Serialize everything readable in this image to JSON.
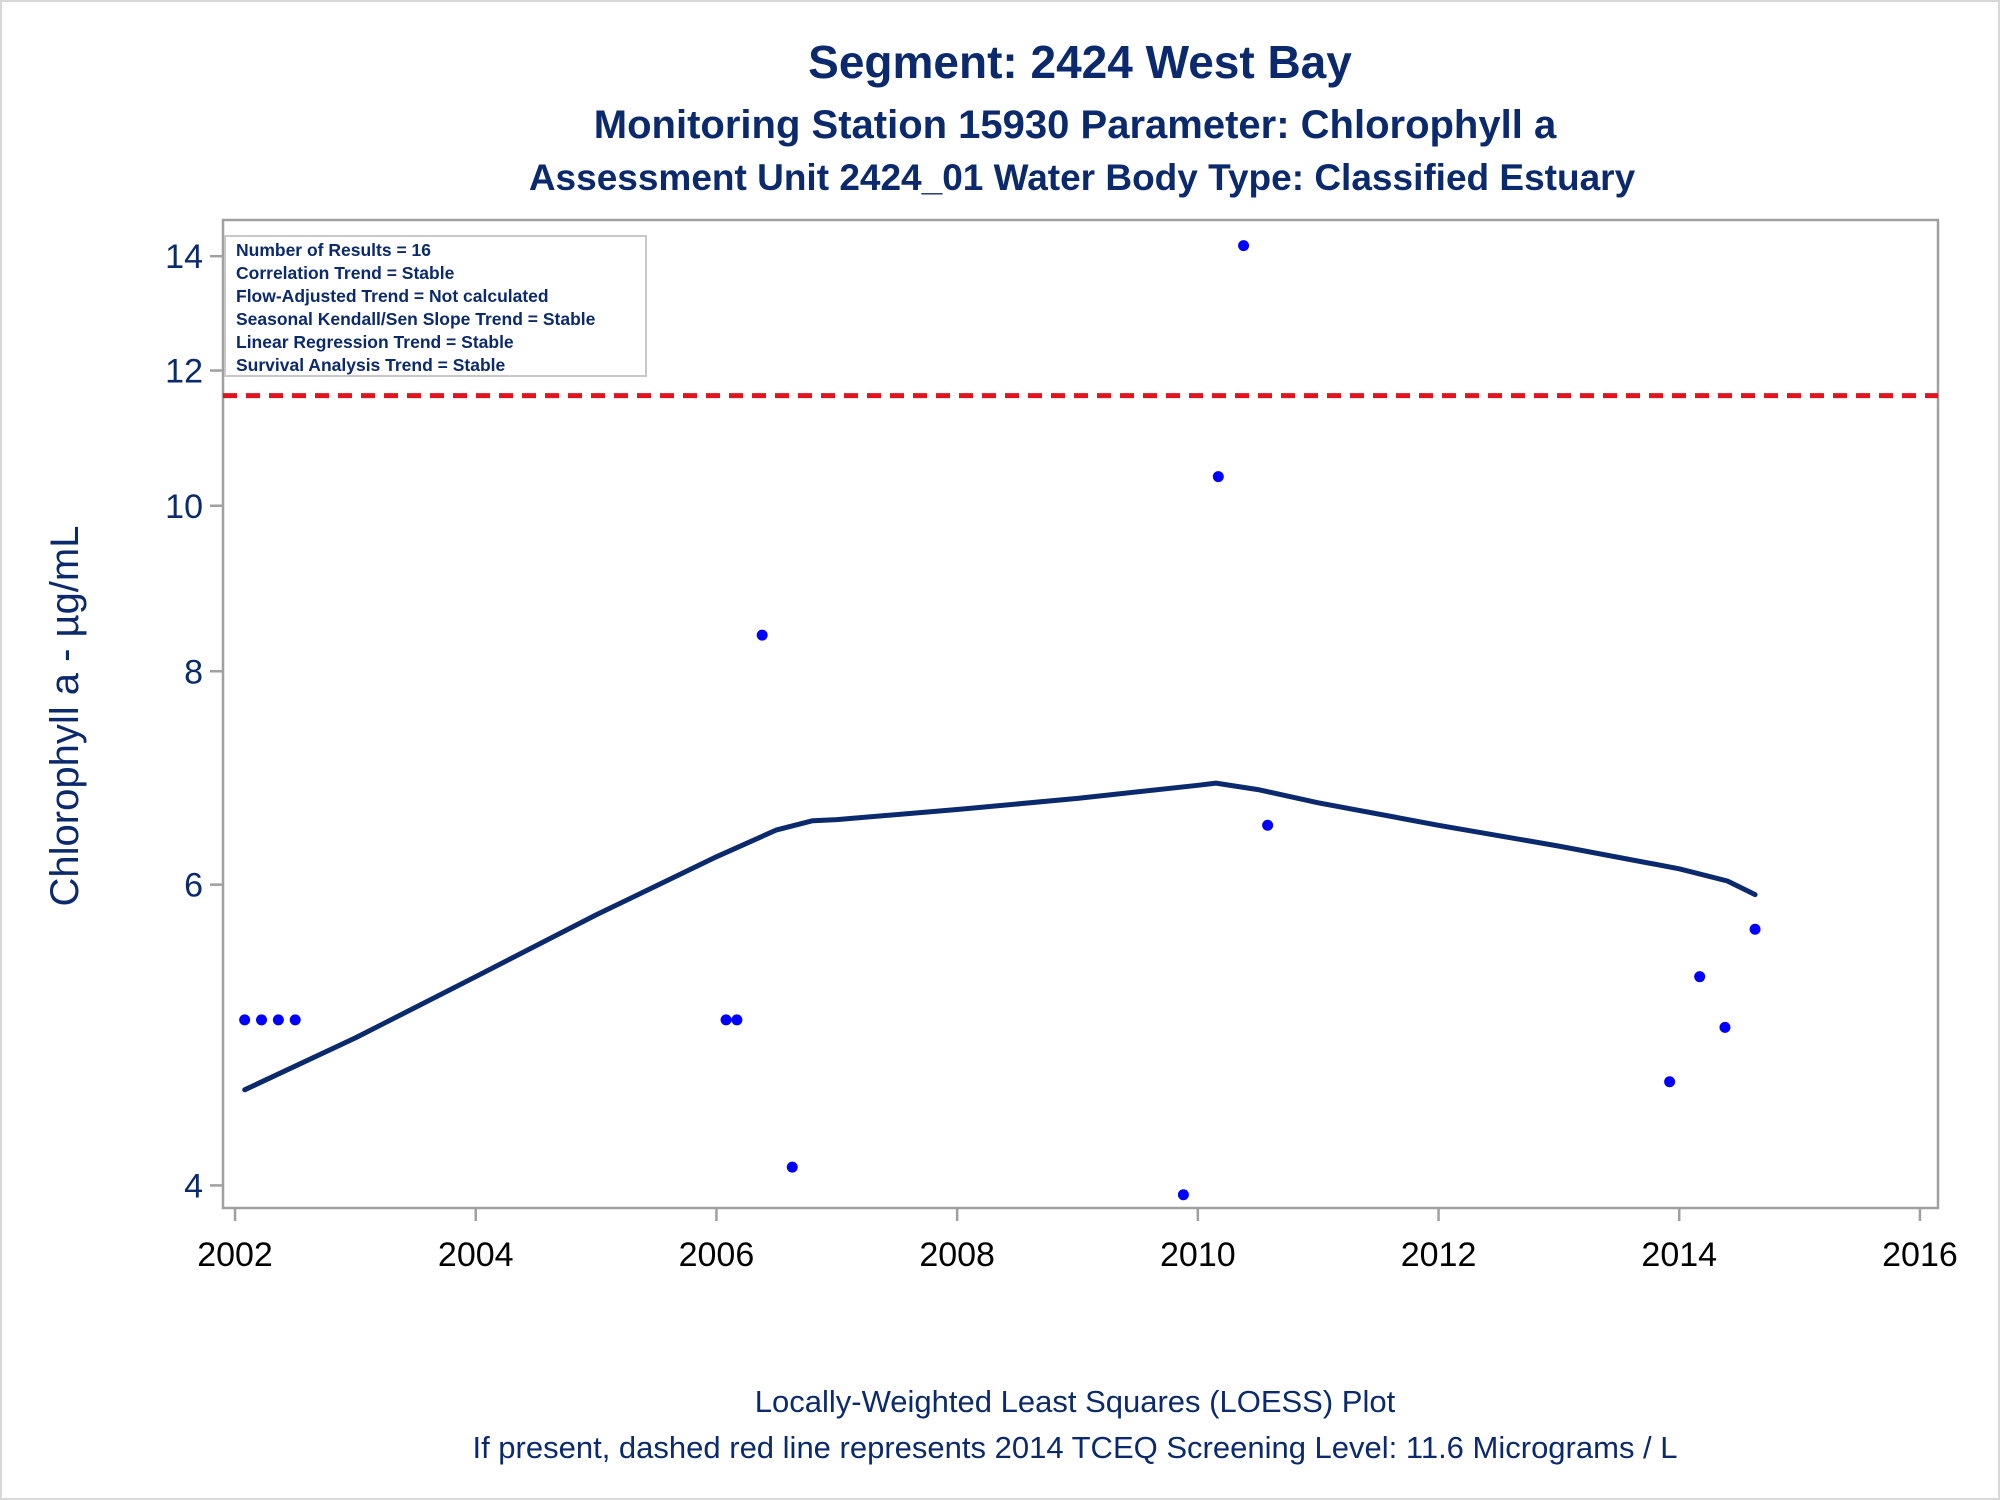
{
  "chart_data": {
    "type": "scatter",
    "title": "Segment: 2424  West Bay",
    "subtitle": "Monitoring Station 15930 Parameter: Chlorophyll a",
    "subtitle2": "Assessment Unit 2424_01   Water Body Type: Classified Estuary",
    "ylabel": "Chlorophyll a -  µg/mL",
    "xlabel": "",
    "footnote1": "Locally-Weighted Least Squares (LOESS) Plot",
    "footnote2": "If present, dashed red line represents 2014 TCEQ Screening Level: 11.6 Micrograms / L",
    "y_scale": "log",
    "xlim": [
      2001.9,
      2016.15
    ],
    "ylim": [
      3.88,
      14.7
    ],
    "x_ticks": [
      2002,
      2004,
      2006,
      2008,
      2010,
      2012,
      2014,
      2016
    ],
    "y_ticks": [
      4,
      6,
      8,
      10,
      12,
      14
    ],
    "grid": false,
    "stats_box": [
      "Number of Results = 16",
      "Correlation Trend = Stable",
      "Flow-Adjusted Trend = Not calculated",
      "Seasonal Kendall/Sen Slope Trend = Stable",
      "Linear Regression Trend = Stable",
      "Survival Analysis Trend = Stable"
    ],
    "screening_level": 11.6,
    "series": [
      {
        "type": "scatter",
        "color": "#0000ff",
        "x": [
          2002.08,
          2002.22,
          2002.36,
          2002.5,
          2006.08,
          2006.17,
          2006.38,
          2006.63,
          2009.88,
          2010.17,
          2010.38,
          2010.58,
          2013.92,
          2014.17,
          2014.38,
          2014.63
        ],
        "y": [
          5.0,
          5.0,
          5.0,
          5.0,
          5.0,
          5.0,
          8.4,
          4.1,
          3.95,
          10.4,
          14.2,
          6.5,
          4.6,
          5.3,
          4.95,
          5.65
        ]
      },
      {
        "type": "line",
        "color": "#0b2a6e",
        "x": [
          2002.08,
          2003,
          2004,
          2005,
          2006,
          2006.5,
          2006.8,
          2007,
          2008,
          2009,
          2010,
          2010.15,
          2010.5,
          2011,
          2012,
          2013,
          2014,
          2014.4,
          2014.63
        ],
        "y": [
          4.55,
          4.88,
          5.3,
          5.76,
          6.23,
          6.46,
          6.54,
          6.55,
          6.64,
          6.74,
          6.86,
          6.88,
          6.82,
          6.7,
          6.5,
          6.32,
          6.13,
          6.03,
          5.92
        ]
      }
    ]
  },
  "colors": {
    "title": "#0b2a6e",
    "points": "#0000ff",
    "loess": "#0b2a6e",
    "screening_line": "#e0141e",
    "axis": "#a0a0a0",
    "text": "#0b2a6e"
  }
}
